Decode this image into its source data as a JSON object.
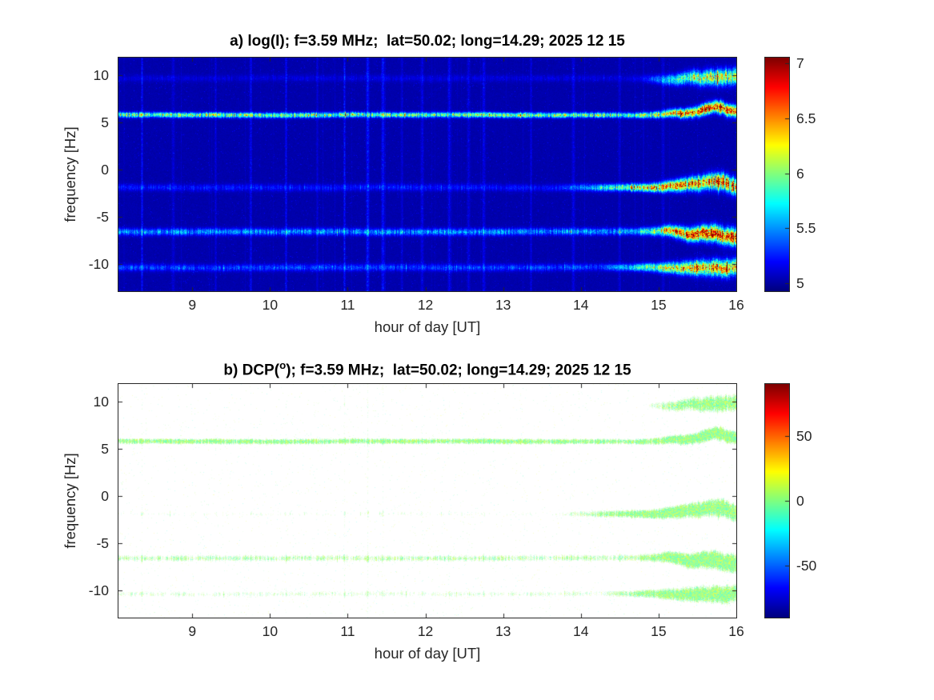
{
  "figure_bg": "#ffffff",
  "axis_color": "#262626",
  "chart_data": [
    {
      "type": "heatmap",
      "panel": "a",
      "title": "a) log(I); f=3.59 MHz;  lat=50.02; long=14.29; 2025 12 15",
      "xlabel": "hour of day [UT]",
      "ylabel": "frequency [Hz]",
      "xlim": [
        8.05,
        16
      ],
      "ylim": [
        -12.9,
        11.9
      ],
      "xticks": [
        9,
        10,
        11,
        12,
        13,
        14,
        15,
        16
      ],
      "yticks": [
        10,
        5,
        0,
        -5,
        -10
      ],
      "colormap": "jet",
      "caxis": [
        4.93,
        7.05
      ],
      "colorbar_ticks": [
        7,
        6.5,
        6,
        5.5,
        5
      ],
      "background_value": 5.0,
      "spectral_lines": [
        {
          "freq_hz": 5.8,
          "base_amp": 1.05,
          "end_amp": 1.9,
          "onset_hour": 14.8,
          "wander": 0.3,
          "width_hz": 0.18
        },
        {
          "freq_hz": 9.7,
          "base_amp": 0.1,
          "end_amp": 1.15,
          "onset_hour": 14.6,
          "wander": 0.45,
          "width_hz": 0.25
        },
        {
          "freq_hz": -1.9,
          "base_amp": 0.22,
          "end_amp": 1.55,
          "onset_hour": 13.5,
          "wander": 0.4,
          "width_hz": 0.25
        },
        {
          "freq_hz": -6.6,
          "base_amp": 0.52,
          "end_amp": 2.0,
          "onset_hour": 14.5,
          "wander": 0.35,
          "width_hz": 0.25
        },
        {
          "freq_hz": -10.4,
          "base_amp": 0.33,
          "end_amp": 1.45,
          "onset_hour": 14.1,
          "wander": 0.35,
          "width_hz": 0.25
        }
      ],
      "vertical_streak_hours": [
        8.35,
        8.75,
        9.3,
        9.75,
        10.2,
        10.6,
        10.95,
        11.25,
        11.45,
        11.7,
        11.95,
        12.3,
        12.55,
        12.75,
        13.35,
        13.9,
        14.5,
        15.05
      ]
    },
    {
      "type": "heatmap",
      "panel": "b",
      "title_prefix": "b) DCP(",
      "title_sup": "o",
      "title_suffix": "); f=3.59 MHz;  lat=50.02; long=14.29; 2025 12 15",
      "xlabel": "hour of day [UT]",
      "ylabel": "frequency [Hz]",
      "xlim": [
        8.05,
        16
      ],
      "ylim": [
        -12.9,
        11.9
      ],
      "xticks": [
        9,
        10,
        11,
        12,
        13,
        14,
        15,
        16
      ],
      "yticks": [
        10,
        5,
        0,
        -5,
        -10
      ],
      "colormap": "jet",
      "caxis": [
        -90,
        90
      ],
      "colorbar_ticks": [
        50,
        0,
        -50
      ],
      "background": "white (no data)",
      "spectral_lines_hz": [
        5.8,
        9.7,
        -1.9,
        -6.6,
        -10.4
      ]
    }
  ]
}
